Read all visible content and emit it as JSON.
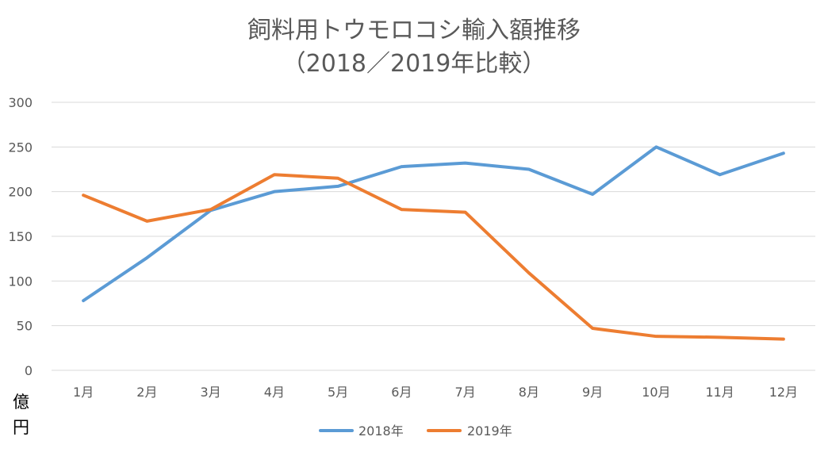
{
  "header": {
    "title_line1": "飼料用トウモロコシ輸入額推移",
    "title_line2": "（2018／2019年比較）"
  },
  "unit": {
    "char1": "億",
    "char2": "円"
  },
  "colors": {
    "series_2018": "#5B9BD5",
    "series_2019": "#ED7D31",
    "grid": "#D9D9D9",
    "text": "#595959"
  },
  "chart_data": {
    "type": "line",
    "title": "飼料用トウモロコシ輸入額推移（2018／2019年比較）",
    "xlabel": "",
    "ylabel": "億円",
    "ylim": [
      0,
      300
    ],
    "yticks": [
      0,
      50,
      100,
      150,
      200,
      250,
      300
    ],
    "grid": true,
    "legend_position": "bottom",
    "categories": [
      "1月",
      "2月",
      "3月",
      "4月",
      "5月",
      "6月",
      "7月",
      "8月",
      "9月",
      "10月",
      "11月",
      "12月"
    ],
    "series": [
      {
        "name": "2018年",
        "color": "#5B9BD5",
        "values": [
          78,
          126,
          179,
          200,
          206,
          228,
          232,
          225,
          197,
          250,
          219,
          243
        ]
      },
      {
        "name": "2019年",
        "color": "#ED7D31",
        "values": [
          196,
          167,
          180,
          219,
          215,
          180,
          177,
          109,
          47,
          38,
          37,
          35
        ]
      }
    ]
  }
}
